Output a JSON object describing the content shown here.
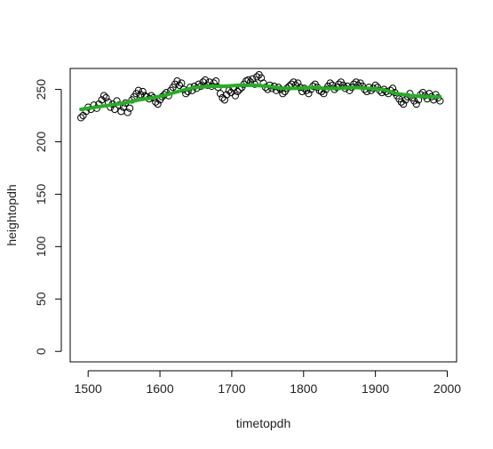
{
  "chart_data": {
    "type": "scatter",
    "title": "",
    "xlabel": "timetopdh",
    "ylabel": "heightopdh",
    "xlim": [
      1475,
      2013
    ],
    "ylim": [
      -10,
      270
    ],
    "xticks": [
      1500,
      1600,
      1700,
      1800,
      1900,
      2000
    ],
    "yticks": [
      0,
      50,
      100,
      150,
      200,
      250
    ],
    "grid": false,
    "legend": "none",
    "colors": {
      "points": "#000000",
      "smooth": "#22b022",
      "frame": "#000000"
    },
    "series": [
      {
        "type": "scatter",
        "x": [
          1490,
          1493,
          1497,
          1500,
          1504,
          1508,
          1512,
          1515,
          1519,
          1522,
          1525,
          1528,
          1531,
          1534,
          1537,
          1540,
          1543,
          1546,
          1549,
          1552,
          1555,
          1558,
          1561,
          1564,
          1567,
          1570,
          1573,
          1576,
          1579,
          1582,
          1585,
          1588,
          1591,
          1594,
          1597,
          1600,
          1603,
          1606,
          1609,
          1612,
          1615,
          1618,
          1621,
          1624,
          1627,
          1630,
          1633,
          1636,
          1639,
          1642,
          1645,
          1648,
          1651,
          1654,
          1657,
          1660,
          1663,
          1666,
          1669,
          1672,
          1675,
          1678,
          1681,
          1684,
          1687,
          1690,
          1693,
          1696,
          1699,
          1702,
          1705,
          1708,
          1711,
          1714,
          1717,
          1720,
          1723,
          1726,
          1729,
          1732,
          1735,
          1738,
          1741,
          1744,
          1747,
          1750,
          1753,
          1756,
          1759,
          1762,
          1765,
          1768,
          1771,
          1774,
          1777,
          1780,
          1783,
          1786,
          1789,
          1792,
          1795,
          1798,
          1801,
          1804,
          1807,
          1810,
          1813,
          1816,
          1819,
          1822,
          1825,
          1828,
          1831,
          1834,
          1837,
          1840,
          1843,
          1846,
          1849,
          1852,
          1855,
          1858,
          1861,
          1864,
          1867,
          1870,
          1873,
          1876,
          1879,
          1882,
          1885,
          1888,
          1891,
          1894,
          1897,
          1900,
          1903,
          1906,
          1909,
          1912,
          1915,
          1918,
          1921,
          1924,
          1927,
          1930,
          1933,
          1936,
          1939,
          1942,
          1945,
          1948,
          1951,
          1954,
          1957,
          1960,
          1963,
          1966,
          1969,
          1972,
          1975,
          1978,
          1981,
          1984,
          1987,
          1990
        ],
        "y": [
          223,
          225,
          229,
          233,
          231,
          235,
          232,
          236,
          240,
          244,
          242,
          238,
          233,
          236,
          231,
          239,
          235,
          229,
          233,
          237,
          228,
          232,
          240,
          243,
          246,
          249,
          245,
          248,
          244,
          243,
          241,
          244,
          242,
          238,
          236,
          240,
          243,
          245,
          247,
          244,
          249,
          252,
          255,
          258,
          254,
          256,
          250,
          246,
          248,
          252,
          249,
          253,
          251,
          255,
          253,
          257,
          259,
          254,
          257,
          253,
          256,
          258,
          252,
          246,
          242,
          240,
          245,
          249,
          247,
          251,
          244,
          248,
          250,
          252,
          255,
          258,
          259,
          257,
          260,
          255,
          262,
          264,
          261,
          256,
          252,
          250,
          254,
          251,
          253,
          249,
          252,
          250,
          246,
          248,
          251,
          253,
          255,
          257,
          254,
          256,
          252,
          248,
          251,
          249,
          246,
          250,
          253,
          255,
          252,
          249,
          248,
          246,
          250,
          253,
          256,
          254,
          250,
          252,
          255,
          257,
          254,
          251,
          253,
          249,
          252,
          255,
          257,
          254,
          256,
          253,
          250,
          248,
          252,
          249,
          251,
          254,
          252,
          249,
          247,
          250,
          248,
          246,
          249,
          251,
          247,
          244,
          241,
          238,
          236,
          240,
          243,
          246,
          242,
          239,
          236,
          240,
          245,
          247,
          244,
          241,
          246,
          243,
          240,
          245,
          242,
          239
        ]
      },
      {
        "type": "line",
        "name": "",
        "x": [
          1490,
          1510,
          1530,
          1550,
          1570,
          1590,
          1610,
          1630,
          1650,
          1670,
          1690,
          1710,
          1730,
          1750,
          1770,
          1790,
          1810,
          1830,
          1850,
          1870,
          1890,
          1910,
          1930,
          1950,
          1970,
          1990
        ],
        "y": [
          231,
          233,
          235,
          237,
          240,
          242,
          245,
          249,
          252,
          253,
          253,
          254,
          254,
          253,
          251,
          251,
          252,
          251,
          251,
          252,
          251,
          250,
          246,
          244,
          243,
          243
        ]
      }
    ]
  }
}
